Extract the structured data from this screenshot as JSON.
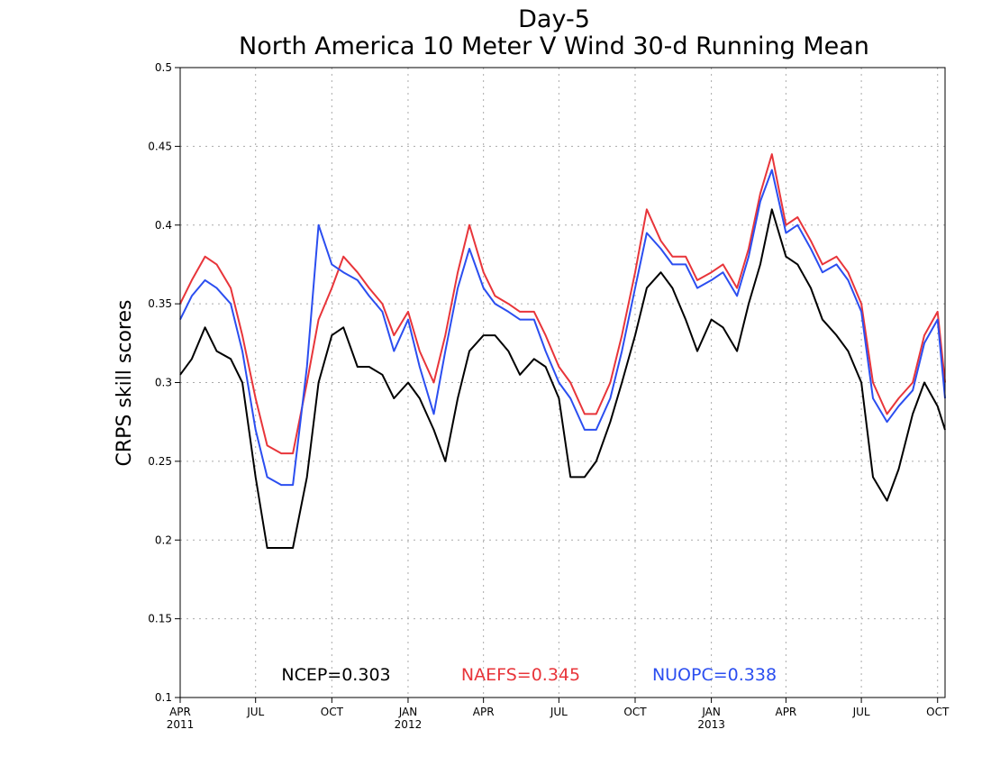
{
  "chart_data": {
    "type": "line",
    "title": "Day-5",
    "subtitle": "North America 10 Meter V Wind 30-d Running Mean",
    "ylabel": "CRPS skill scores",
    "xlabel": "",
    "ylim": [
      0.1,
      0.5
    ],
    "yticks": [
      0.1,
      0.15,
      0.2,
      0.25,
      0.3,
      0.35,
      0.4,
      0.45,
      0.5
    ],
    "ytick_labels": [
      "0.1",
      "0.15",
      "0.2",
      "0.25",
      "0.3",
      "0.35",
      "0.4",
      "0.45",
      "0.5"
    ],
    "x_start": "2011-04",
    "x_end": "2013-10",
    "grid": true,
    "xticks": [
      {
        "date": "2011-04",
        "label": "APR",
        "year": "2011"
      },
      {
        "date": "2011-07",
        "label": "JUL",
        "year": ""
      },
      {
        "date": "2011-10",
        "label": "OCT",
        "year": ""
      },
      {
        "date": "2012-01",
        "label": "JAN",
        "year": "2012"
      },
      {
        "date": "2012-04",
        "label": "APR",
        "year": ""
      },
      {
        "date": "2012-07",
        "label": "JUL",
        "year": ""
      },
      {
        "date": "2012-10",
        "label": "OCT",
        "year": ""
      },
      {
        "date": "2013-01",
        "label": "JAN",
        "year": "2013"
      },
      {
        "date": "2013-04",
        "label": "APR",
        "year": ""
      },
      {
        "date": "2013-07",
        "label": "JUL",
        "year": ""
      },
      {
        "date": "2013-10",
        "label": "OCT",
        "year": ""
      }
    ],
    "x": [
      "2011-04-01",
      "2011-04-15",
      "2011-05-01",
      "2011-05-15",
      "2011-06-01",
      "2011-06-15",
      "2011-07-01",
      "2011-07-15",
      "2011-08-01",
      "2011-08-15",
      "2011-09-01",
      "2011-09-15",
      "2011-10-01",
      "2011-10-15",
      "2011-11-01",
      "2011-11-15",
      "2011-12-01",
      "2011-12-15",
      "2012-01-01",
      "2012-01-15",
      "2012-02-01",
      "2012-02-15",
      "2012-03-01",
      "2012-03-15",
      "2012-04-01",
      "2012-04-15",
      "2012-05-01",
      "2012-05-15",
      "2012-06-01",
      "2012-06-15",
      "2012-07-01",
      "2012-07-15",
      "2012-08-01",
      "2012-08-15",
      "2012-09-01",
      "2012-09-15",
      "2012-10-01",
      "2012-10-15",
      "2012-11-01",
      "2012-11-15",
      "2012-12-01",
      "2012-12-15",
      "2013-01-01",
      "2013-01-15",
      "2013-02-01",
      "2013-02-15",
      "2013-03-01",
      "2013-03-15",
      "2013-04-01",
      "2013-04-15",
      "2013-05-01",
      "2013-05-15",
      "2013-06-01",
      "2013-06-15",
      "2013-07-01",
      "2013-07-15",
      "2013-08-01",
      "2013-08-15",
      "2013-09-01",
      "2013-09-15",
      "2013-10-01",
      "2013-10-10"
    ],
    "series": [
      {
        "name": "NCEP",
        "legend": "NCEP=0.303",
        "color": "#000000",
        "values": [
          0.305,
          0.315,
          0.335,
          0.32,
          0.315,
          0.3,
          0.24,
          0.195,
          0.195,
          0.195,
          0.24,
          0.3,
          0.33,
          0.335,
          0.31,
          0.31,
          0.305,
          0.29,
          0.3,
          0.29,
          0.27,
          0.25,
          0.29,
          0.32,
          0.33,
          0.33,
          0.32,
          0.305,
          0.315,
          0.31,
          0.29,
          0.24,
          0.24,
          0.25,
          0.275,
          0.3,
          0.33,
          0.36,
          0.37,
          0.36,
          0.34,
          0.32,
          0.34,
          0.335,
          0.32,
          0.35,
          0.375,
          0.41,
          0.38,
          0.375,
          0.36,
          0.34,
          0.33,
          0.32,
          0.3,
          0.24,
          0.225,
          0.245,
          0.28,
          0.3,
          0.285,
          0.27
        ]
      },
      {
        "name": "NAEFS",
        "legend": "NAEFS=0.345",
        "color": "#e8353a",
        "values": [
          0.35,
          0.365,
          0.38,
          0.375,
          0.36,
          0.33,
          0.29,
          0.26,
          0.255,
          0.255,
          0.3,
          0.34,
          0.36,
          0.38,
          0.37,
          0.36,
          0.35,
          0.33,
          0.345,
          0.32,
          0.3,
          0.33,
          0.37,
          0.4,
          0.37,
          0.355,
          0.35,
          0.345,
          0.345,
          0.33,
          0.31,
          0.3,
          0.28,
          0.28,
          0.3,
          0.33,
          0.37,
          0.41,
          0.39,
          0.38,
          0.38,
          0.365,
          0.37,
          0.375,
          0.36,
          0.385,
          0.42,
          0.445,
          0.4,
          0.405,
          0.39,
          0.375,
          0.38,
          0.37,
          0.35,
          0.3,
          0.28,
          0.29,
          0.3,
          0.33,
          0.345,
          0.3
        ]
      },
      {
        "name": "NUOPC",
        "legend": "NUOPC=0.338",
        "color": "#2b4ef0",
        "values": [
          0.34,
          0.355,
          0.365,
          0.36,
          0.35,
          0.32,
          0.27,
          0.24,
          0.235,
          0.235,
          0.31,
          0.4,
          0.375,
          0.37,
          0.365,
          0.355,
          0.345,
          0.32,
          0.34,
          0.31,
          0.28,
          0.32,
          0.36,
          0.385,
          0.36,
          0.35,
          0.345,
          0.34,
          0.34,
          0.32,
          0.3,
          0.29,
          0.27,
          0.27,
          0.29,
          0.32,
          0.36,
          0.395,
          0.385,
          0.375,
          0.375,
          0.36,
          0.365,
          0.37,
          0.355,
          0.38,
          0.415,
          0.435,
          0.395,
          0.4,
          0.385,
          0.37,
          0.375,
          0.365,
          0.345,
          0.29,
          0.275,
          0.285,
          0.295,
          0.325,
          0.34,
          0.29
        ]
      }
    ]
  }
}
